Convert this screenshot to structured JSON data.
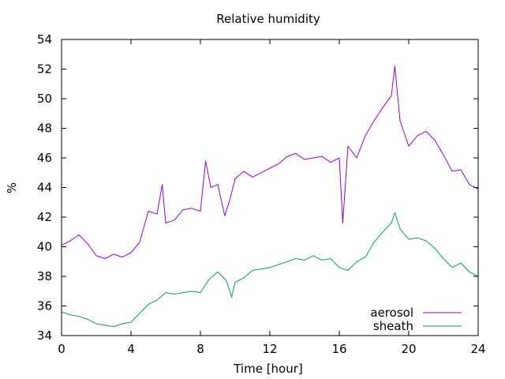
{
  "chart_data": {
    "type": "line",
    "title": "Relative humidity",
    "xlabel": "Time [hour]",
    "ylabel": "%",
    "xlim": [
      0,
      24
    ],
    "ylim": [
      34,
      54
    ],
    "xticks": [
      0,
      4,
      8,
      12,
      16,
      20,
      24
    ],
    "yticks": [
      34,
      36,
      38,
      40,
      42,
      44,
      46,
      48,
      50,
      52,
      54
    ],
    "grid": false,
    "legend_position": "bottom-right",
    "series": [
      {
        "name": "aerosol",
        "color": "#9400d3",
        "x": [
          0,
          0.5,
          1,
          1.5,
          2,
          2.5,
          3,
          3.5,
          4,
          4.5,
          5,
          5.5,
          5.8,
          6,
          6.5,
          7,
          7.5,
          8,
          8.3,
          8.6,
          9,
          9.4,
          9.7,
          10,
          10.5,
          11,
          11.5,
          12,
          12.5,
          13,
          13.5,
          14,
          14.5,
          15,
          15.5,
          16,
          16.2,
          16.5,
          17,
          17.5,
          18,
          18.5,
          19,
          19.2,
          19.5,
          20,
          20.5,
          21,
          21.5,
          22,
          22.5,
          23,
          23.5,
          24
        ],
        "y": [
          40.1,
          40.4,
          40.8,
          40.2,
          39.4,
          39.2,
          39.5,
          39.3,
          39.6,
          40.3,
          42.4,
          42.2,
          44.2,
          41.6,
          41.8,
          42.5,
          42.6,
          42.4,
          45.8,
          44.0,
          44.2,
          42.1,
          43.2,
          44.6,
          45.1,
          44.7,
          45.0,
          45.3,
          45.6,
          46.1,
          46.3,
          45.9,
          46.0,
          46.1,
          45.7,
          46.0,
          41.6,
          46.8,
          46.0,
          47.5,
          48.5,
          49.4,
          50.2,
          52.2,
          48.5,
          46.8,
          47.5,
          47.8,
          47.2,
          46.2,
          45.1,
          45.2,
          44.2,
          43.9
        ]
      },
      {
        "name": "sheath",
        "color": "#009e73",
        "x": [
          0,
          0.5,
          1,
          1.5,
          2,
          2.5,
          3,
          3.5,
          4,
          4.5,
          5,
          5.5,
          6,
          6.5,
          7,
          7.5,
          8,
          8.5,
          9,
          9.5,
          9.8,
          10,
          10.5,
          11,
          11.5,
          12,
          12.5,
          13,
          13.5,
          14,
          14.5,
          15,
          15.5,
          16,
          16.5,
          17,
          17.5,
          18,
          18.5,
          19,
          19.2,
          19.5,
          20,
          20.5,
          21,
          21.5,
          22,
          22.5,
          23,
          23.5,
          24
        ],
        "y": [
          35.6,
          35.4,
          35.3,
          35.1,
          34.8,
          34.7,
          34.6,
          34.8,
          34.9,
          35.5,
          36.1,
          36.4,
          36.9,
          36.8,
          36.9,
          37.0,
          36.9,
          37.8,
          38.3,
          37.7,
          36.6,
          37.6,
          37.9,
          38.4,
          38.5,
          38.6,
          38.8,
          39.0,
          39.2,
          39.1,
          39.4,
          39.1,
          39.2,
          38.6,
          38.4,
          39.0,
          39.3,
          40.3,
          41.0,
          41.6,
          42.3,
          41.2,
          40.5,
          40.6,
          40.4,
          39.9,
          39.2,
          38.6,
          38.9,
          38.3,
          38.0
        ]
      }
    ]
  }
}
